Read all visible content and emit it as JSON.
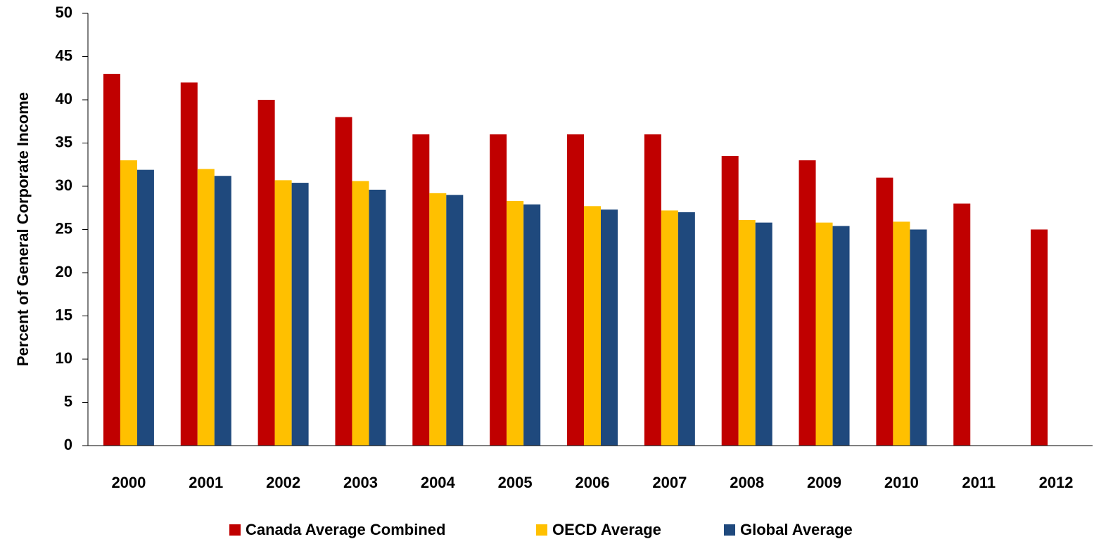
{
  "chart_data": {
    "type": "bar",
    "ylabel": "Percent of General Corporate Income",
    "categories": [
      "2000",
      "2001",
      "2002",
      "2003",
      "2004",
      "2005",
      "2006",
      "2007",
      "2008",
      "2009",
      "2010",
      "2011",
      "2012"
    ],
    "series": [
      {
        "name": "Canada Average Combined",
        "color": "#c00000",
        "values": [
          43,
          42,
          40,
          38,
          36,
          36,
          36,
          36,
          33.5,
          33,
          31,
          28,
          25
        ]
      },
      {
        "name": "OECD Average",
        "color": "#ffc000",
        "values": [
          33,
          32,
          30.7,
          30.6,
          29.2,
          28.3,
          27.7,
          27.2,
          26.1,
          25.8,
          25.9,
          null,
          null
        ]
      },
      {
        "name": "Global Average",
        "color": "#1f497d",
        "values": [
          31.9,
          31.2,
          30.4,
          29.6,
          29,
          27.9,
          27.3,
          27,
          25.8,
          25.4,
          25,
          null,
          null
        ]
      }
    ],
    "ylim": [
      0,
      50
    ],
    "yticks": [
      0,
      5,
      10,
      15,
      20,
      25,
      30,
      35,
      40,
      45,
      50
    ],
    "grid": false,
    "legend": "bottom"
  }
}
